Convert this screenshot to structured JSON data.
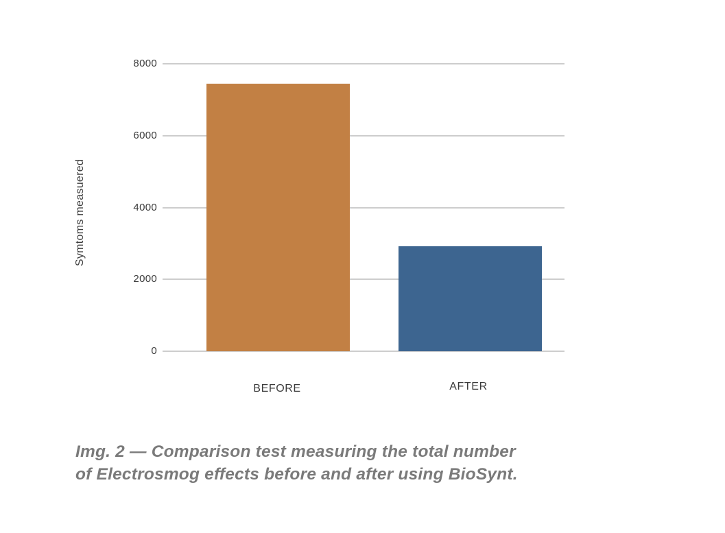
{
  "chart_data": {
    "type": "bar",
    "categories": [
      "BEFORE",
      "AFTER"
    ],
    "values": [
      7450,
      2930
    ],
    "colors": [
      "#c28044",
      "#3d6590"
    ],
    "ylabel": "Symtoms measuered",
    "ylim": [
      0,
      8000
    ],
    "yticks": [
      "8000",
      "6000",
      "4000",
      "2000",
      "0"
    ],
    "grid": true,
    "legend": false,
    "gridline_color": "#cdcdcd",
    "tick_color": "#3b3b3b"
  },
  "caption": {
    "lines": [
      "Img. 2 — Comparison test measuring the total number",
      "of Electrosmog effects before and after using BioSynt."
    ]
  }
}
